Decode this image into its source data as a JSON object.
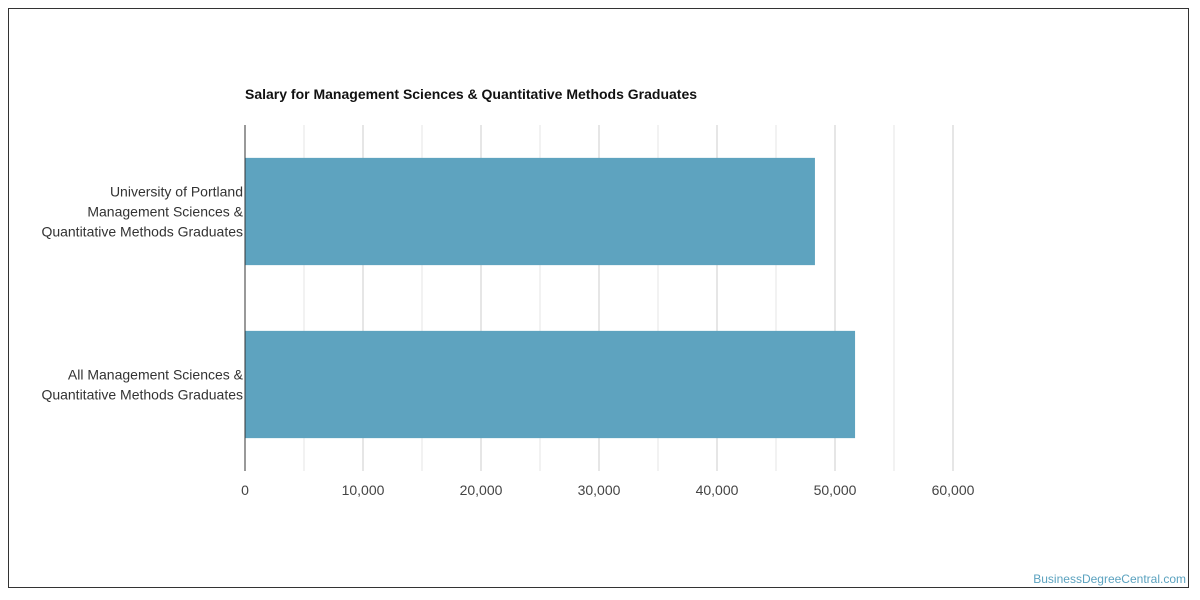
{
  "chart_data": {
    "type": "bar",
    "orientation": "horizontal",
    "title": "Salary for Management Sciences & Quantitative Methods Graduates",
    "categories": [
      "University of Portland Management Sciences & Quantitative Methods Graduates",
      "All Management Sciences & Quantitative Methods Graduates"
    ],
    "category_lines": [
      [
        "University of Portland",
        "Management Sciences &",
        "Quantitative Methods Graduates"
      ],
      [
        "All Management Sciences &",
        "Quantitative Methods Graduates"
      ]
    ],
    "values": [
      48300,
      51700
    ],
    "xlim": [
      0,
      60000
    ],
    "xticks": [
      0,
      10000,
      20000,
      30000,
      40000,
      50000,
      60000
    ],
    "xtick_labels": [
      "0",
      "10,000",
      "20,000",
      "30,000",
      "40,000",
      "50,000",
      "60,000"
    ],
    "grid": true,
    "bar_color": "#5ea3bf"
  },
  "watermark": "BusinessDegreeCentral.com"
}
